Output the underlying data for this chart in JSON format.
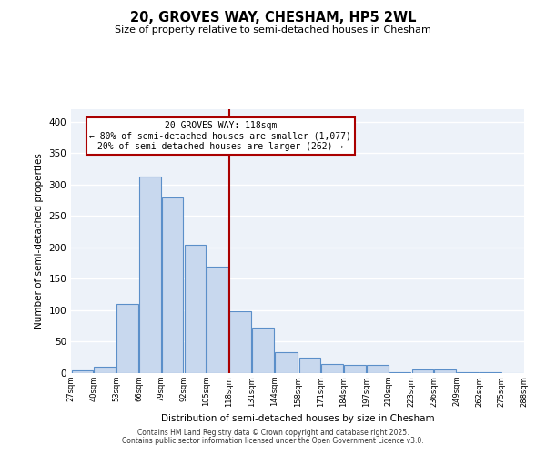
{
  "title": "20, GROVES WAY, CHESHAM, HP5 2WL",
  "subtitle": "Size of property relative to semi-detached houses in Chesham",
  "xlabel": "Distribution of semi-detached houses by size in Chesham",
  "ylabel": "Number of semi-detached properties",
  "bin_edges": [
    27,
    40,
    53,
    66,
    79,
    92,
    105,
    118,
    131,
    144,
    158,
    171,
    184,
    197,
    210,
    223,
    236,
    249,
    262,
    275,
    288
  ],
  "bin_labels": [
    "27sqm",
    "40sqm",
    "53sqm",
    "66sqm",
    "79sqm",
    "92sqm",
    "105sqm",
    "118sqm",
    "131sqm",
    "144sqm",
    "158sqm",
    "171sqm",
    "184sqm",
    "197sqm",
    "210sqm",
    "223sqm",
    "236sqm",
    "249sqm",
    "262sqm",
    "275sqm",
    "288sqm"
  ],
  "counts": [
    5,
    10,
    110,
    313,
    280,
    204,
    170,
    99,
    72,
    33,
    25,
    15,
    13,
    13,
    2,
    6,
    6,
    2,
    1,
    0
  ],
  "bar_facecolor": "#c8d8ee",
  "bar_edgecolor": "#5b8fc9",
  "vline_x": 118,
  "vline_color": "#aa0000",
  "annotation_title": "20 GROVES WAY: 118sqm",
  "annotation_line1": "← 80% of semi-detached houses are smaller (1,077)",
  "annotation_line2": "20% of semi-detached houses are larger (262) →",
  "annotation_box_edgecolor": "#aa0000",
  "ylim": [
    0,
    420
  ],
  "yticks": [
    0,
    50,
    100,
    150,
    200,
    250,
    300,
    350,
    400
  ],
  "plot_bg": "#edf2f9",
  "grid_color": "#ffffff",
  "footer_line1": "Contains HM Land Registry data © Crown copyright and database right 2025.",
  "footer_line2": "Contains public sector information licensed under the Open Government Licence v3.0."
}
